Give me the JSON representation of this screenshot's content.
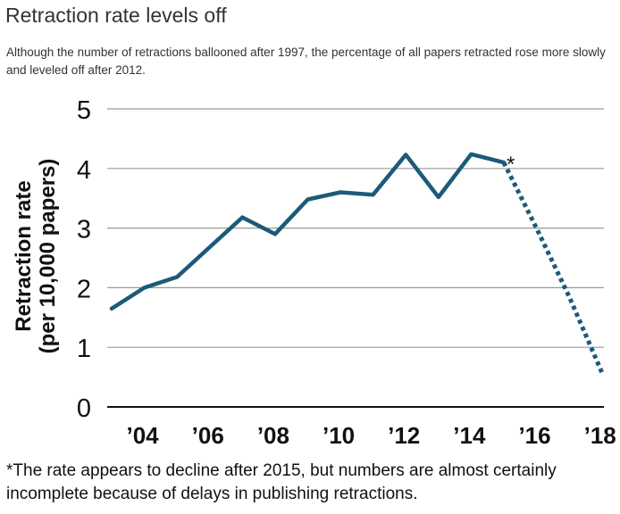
{
  "title": "Retraction rate levels off",
  "subtitle": "Although the number of retractions ballooned after 1997, the percentage of all papers retracted rose more slowly and leveled off after 2012.",
  "footnote": "*The rate appears to decline after 2015, but numbers are almost certainly incomplete because of delays in publishing retractions.",
  "colors": {
    "line": "#1c5a78",
    "grid": "#9a9a9a",
    "axis": "#111111"
  },
  "chart_data": {
    "type": "line",
    "ylabel_line1": "Retraction rate",
    "ylabel_line2": "(per 10,000 papers)",
    "ylim": [
      0,
      5
    ],
    "yticks": [
      0,
      1,
      2,
      3,
      4,
      5
    ],
    "xlim": [
      2003,
      2018.2
    ],
    "xticks": [
      {
        "value": 2004,
        "label": "’04"
      },
      {
        "value": 2006,
        "label": "’06"
      },
      {
        "value": 2008,
        "label": "’08"
      },
      {
        "value": 2010,
        "label": "’10"
      },
      {
        "value": 2012,
        "label": "’12"
      },
      {
        "value": 2014,
        "label": "’14"
      },
      {
        "value": 2016,
        "label": "’16"
      },
      {
        "value": 2018,
        "label": "’18"
      }
    ],
    "grid": true,
    "series": [
      {
        "style": "solid",
        "x": [
          2003,
          2004,
          2005,
          2006,
          2007,
          2008,
          2009,
          2010,
          2011,
          2012,
          2013,
          2014,
          2015
        ],
        "y": [
          1.65,
          2.0,
          2.18,
          2.68,
          3.18,
          2.9,
          3.48,
          3.6,
          3.56,
          4.23,
          3.52,
          4.24,
          4.1
        ]
      },
      {
        "style": "dotted",
        "x": [
          2015,
          2016,
          2017,
          2018
        ],
        "y": [
          4.1,
          3.0,
          1.85,
          0.58
        ]
      }
    ],
    "annotation": {
      "text": "*",
      "x": 2015,
      "y": 4.1
    }
  }
}
